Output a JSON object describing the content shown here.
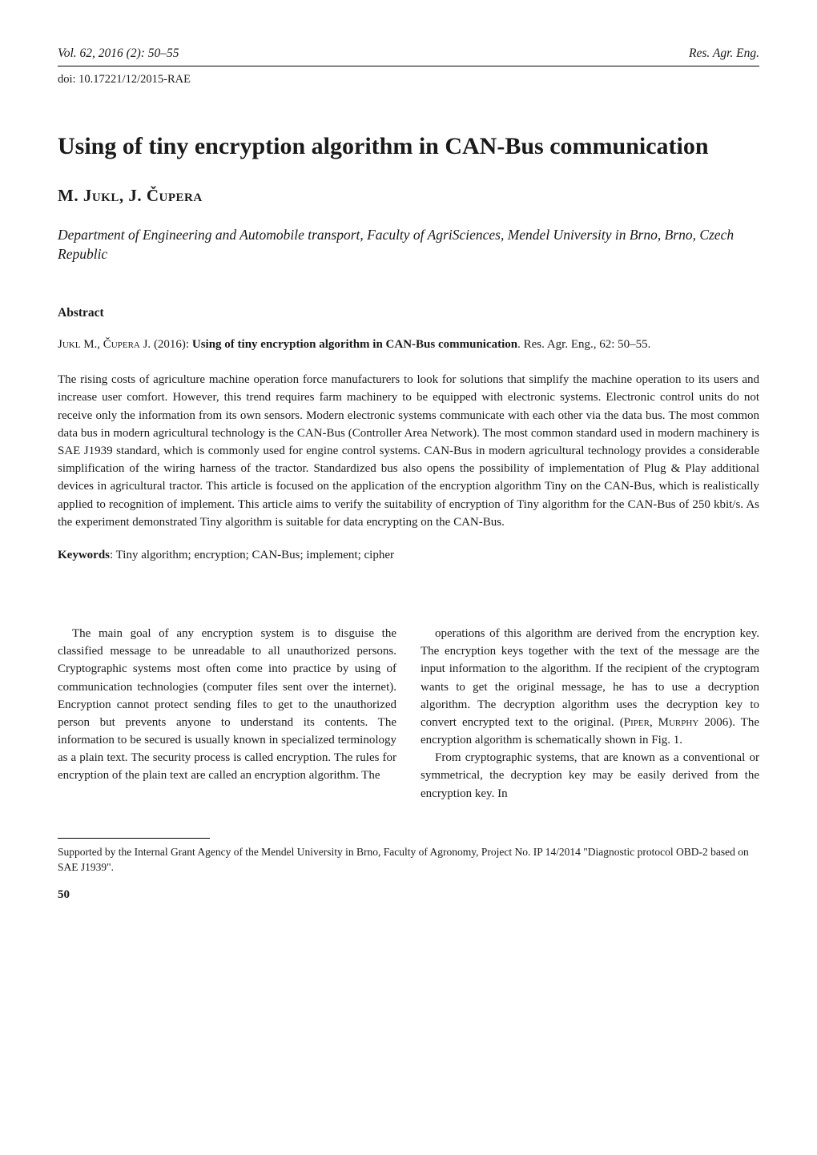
{
  "running_head": {
    "left": "Vol. 62, 2016 (2): 50–55",
    "right": "Res. Agr. Eng."
  },
  "doi": "doi: 10.17221/12/2015-RAE",
  "title": "Using of tiny encryption algorithm in CAN-Bus communication",
  "authors": "M. Jukl, J. Čupera",
  "affiliation": "Department of Engineering and Automobile transport, Faculty of AgriSciences, Mendel University in Brno, Brno, Czech Republic",
  "abstract_head": "Abstract",
  "citation_prefix_sc": "Jukl M., Čupera J.",
  "citation_rest": " (2016): ",
  "citation_title_bold": "Using of tiny encryption algorithm in CAN-Bus communication",
  "citation_tail": ". Res. Agr. Eng., 62: 50–55.",
  "abstract_text": "The rising costs of agriculture machine operation force manufacturers to look for solutions that simplify the machine operation to its users and increase user comfort. However, this trend requires farm machinery to be equipped with electronic systems. Electronic control units do not receive only the information from its own sensors. Modern electronic systems communicate with each other via the data bus. The most common data bus in modern agricultural technology is the CAN-Bus (Controller Area Network). The most common standard used in modern machinery is SAE J1939 standard, which is commonly used for engine control systems. CAN-Bus in modern agricultural technology provides a considerable simplification of the wiring harness of the tractor. Standardized bus also opens the possibility of implementation of Plug & Play additional devices in agricultural tractor. This article is focused on the application of the encryption algorithm Tiny on the CAN-Bus, which is realistically applied to recognition of implement. This article aims to verify the suitability of encryption of Tiny algorithm for the CAN-Bus of 250 kbit/s. As the experiment demonstrated Tiny algorithm is suitable for data encrypting on the CAN-Bus.",
  "keywords_label": "Keywords",
  "keywords_text": ": Tiny algorithm; encryption; CAN-Bus; implement; cipher",
  "body": {
    "left": "The main goal of any encryption system is to disguise the classified message to be unreadable to all unauthorized persons. Cryptographic systems most often come into practice by using of communication technologies (computer files sent over the internet). Encryption cannot protect sending files to get to the unauthorized person but prevents anyone to understand its contents. The information to be secured is usually known in specialized terminology as a plain text. The security process is called encryption. The rules for encryption of the plain text are called an encryption algorithm. The",
    "right_p1_a": "operations of this algorithm are derived from the encryption key. The encryption keys together with the text of the message are the input information to the algorithm. If the recipient of the cryptogram wants to get the original message, he has to use a decryption algorithm. The decryption algorithm uses the decryption key to convert encrypted text to the original. (",
    "right_p1_sc": "Piper, Murphy",
    "right_p1_b": " 2006). The encryption algorithm is schematically shown in Fig. 1.",
    "right_p2": "From cryptographic systems, that are known as a conventional or symmetrical, the decryption key may be easily derived from the encryption key. In"
  },
  "footnote": "Supported by the Internal Grant Agency of the Mendel University in Brno, Faculty of Agronomy, Project No. IP 14/2014 \"Diagnostic protocol OBD-2 based on SAE J1939\".",
  "page_number": "50",
  "colors": {
    "text": "#1a1a1a",
    "rule": "#000000",
    "bg": "#ffffff"
  },
  "typography": {
    "body_pt": 15,
    "title_pt": 30,
    "authors_pt": 21,
    "affil_pt": 17.5,
    "footnote_pt": 13.5
  }
}
